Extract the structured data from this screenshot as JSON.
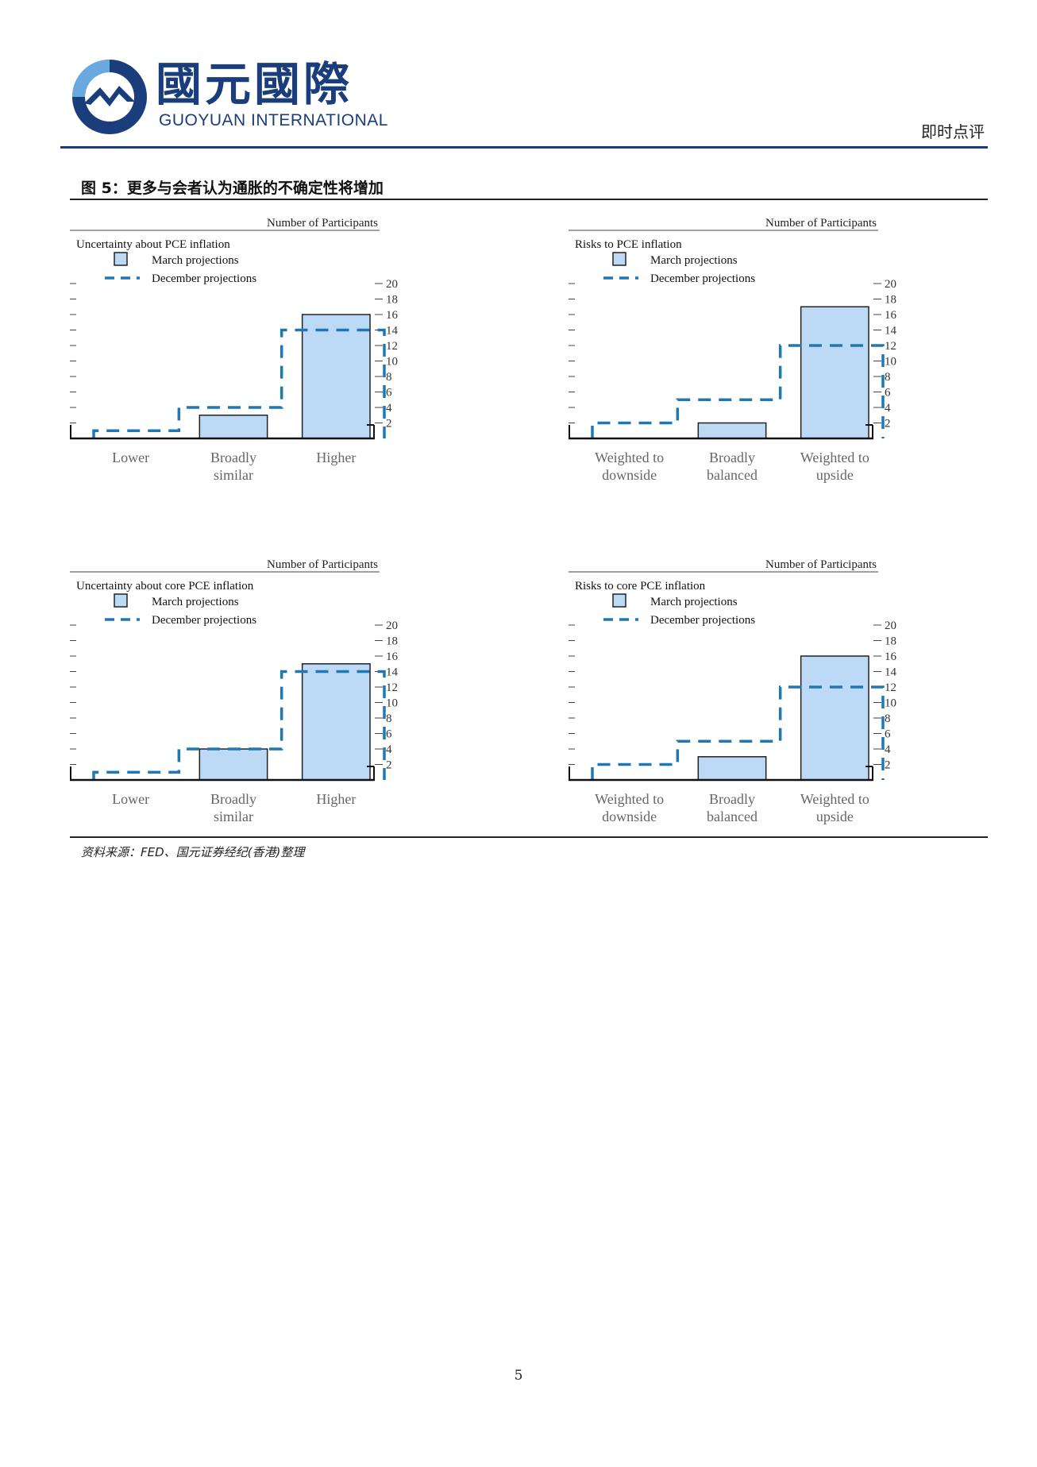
{
  "header": {
    "logo_cn": "國元國際",
    "logo_en": "GUOYUAN INTERNATIONAL",
    "report_type": "即时点评"
  },
  "figure": {
    "title": "图 5：更多与会者认为通胀的不确定性将增加",
    "source": "资料来源：FED、国元证券经纪(香港)整理"
  },
  "page_number": "5",
  "colors": {
    "brand": "#1a3d7c",
    "bar_fill": "#bcd9f6",
    "dash": "#1f78b4"
  },
  "chart_data": [
    {
      "type": "bar",
      "title": "Uncertainty about PCE inflation",
      "ylabel": "Number of Participants",
      "ylim": [
        0,
        20
      ],
      "yticks": [
        "2",
        "4",
        "6",
        "8",
        "10",
        "12",
        "14",
        "16",
        "18",
        "20"
      ],
      "categories": [
        [
          "Lower"
        ],
        [
          "Broadly",
          "similar"
        ],
        [
          "Higher"
        ]
      ],
      "series": [
        {
          "name": "March projections",
          "style": "bar",
          "values": [
            0,
            3,
            16
          ]
        },
        {
          "name": "December projections",
          "style": "dashed-step",
          "values": [
            1,
            4,
            14
          ]
        }
      ],
      "legend": [
        "March projections",
        "December projections"
      ]
    },
    {
      "type": "bar",
      "title": "Risks to PCE inflation",
      "ylabel": "Number of Participants",
      "ylim": [
        0,
        20
      ],
      "yticks": [
        "2",
        "4",
        "6",
        "8",
        "10",
        "12",
        "14",
        "16",
        "18",
        "20"
      ],
      "categories": [
        [
          "Weighted to",
          "downside"
        ],
        [
          "Broadly",
          "balanced"
        ],
        [
          "Weighted to",
          "upside"
        ]
      ],
      "series": [
        {
          "name": "March projections",
          "style": "bar",
          "values": [
            0,
            2,
            17
          ]
        },
        {
          "name": "December projections",
          "style": "dashed-step",
          "values": [
            2,
            5,
            12
          ]
        }
      ],
      "legend": [
        "March projections",
        "December projections"
      ]
    },
    {
      "type": "bar",
      "title": "Uncertainty about core PCE inflation",
      "ylabel": "Number of Participants",
      "ylim": [
        0,
        20
      ],
      "yticks": [
        "2",
        "4",
        "6",
        "8",
        "10",
        "12",
        "14",
        "16",
        "18",
        "20"
      ],
      "categories": [
        [
          "Lower"
        ],
        [
          "Broadly",
          "similar"
        ],
        [
          "Higher"
        ]
      ],
      "series": [
        {
          "name": "March projections",
          "style": "bar",
          "values": [
            0,
            4,
            15
          ]
        },
        {
          "name": "December projections",
          "style": "dashed-step",
          "values": [
            1,
            4,
            14
          ]
        }
      ],
      "legend": [
        "March projections",
        "December projections"
      ]
    },
    {
      "type": "bar",
      "title": "Risks to core PCE inflation",
      "ylabel": "Number of Participants",
      "ylim": [
        0,
        20
      ],
      "yticks": [
        "2",
        "4",
        "6",
        "8",
        "10",
        "12",
        "14",
        "16",
        "18",
        "20"
      ],
      "categories": [
        [
          "Weighted to",
          "downside"
        ],
        [
          "Broadly",
          "balanced"
        ],
        [
          "Weighted to",
          "upside"
        ]
      ],
      "series": [
        {
          "name": "March projections",
          "style": "bar",
          "values": [
            0,
            3,
            16
          ]
        },
        {
          "name": "December projections",
          "style": "dashed-step",
          "values": [
            2,
            5,
            12
          ]
        }
      ],
      "legend": [
        "March projections",
        "December projections"
      ]
    }
  ]
}
